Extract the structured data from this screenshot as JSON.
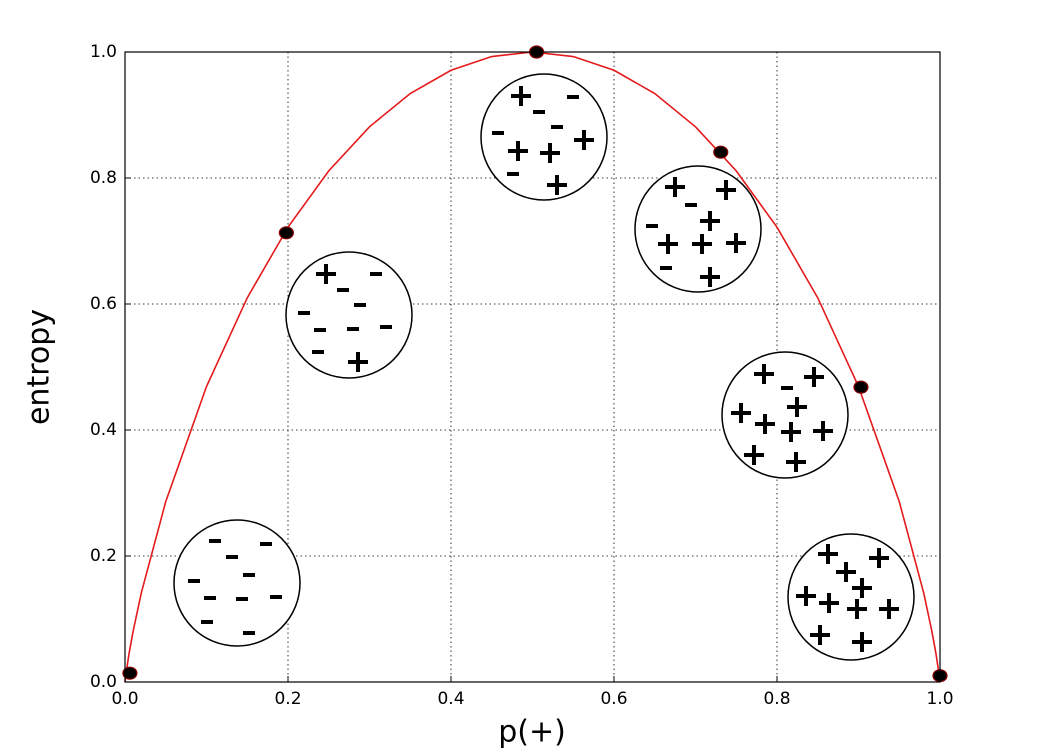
{
  "chart_data": {
    "type": "line",
    "xlabel": "p(+)",
    "ylabel": "entropy",
    "xlim": [
      0,
      1
    ],
    "ylim": [
      0,
      1
    ],
    "xticks": [
      {
        "value": 0,
        "label": "0.0"
      },
      {
        "value": 0.2,
        "label": "0.2"
      },
      {
        "value": 0.4,
        "label": "0.4"
      },
      {
        "value": 0.6,
        "label": "0.6"
      },
      {
        "value": 0.8,
        "label": "0.8"
      },
      {
        "value": 1,
        "label": "1.0"
      }
    ],
    "yticks": [
      {
        "value": 0,
        "label": "0.0"
      },
      {
        "value": 0.2,
        "label": "0.2"
      },
      {
        "value": 0.4,
        "label": "0.4"
      },
      {
        "value": 0.6,
        "label": "0.6"
      },
      {
        "value": 0.8,
        "label": "0.8"
      },
      {
        "value": 1,
        "label": "1.0"
      }
    ],
    "grid": true,
    "series": [
      {
        "color": "#e41a1c",
        "marker": false,
        "x": [
          0,
          0.001,
          0.005,
          0.01,
          0.02,
          0.05,
          0.1,
          0.15,
          0.2,
          0.25,
          0.3,
          0.35,
          0.4,
          0.45,
          0.5,
          0.55,
          0.6,
          0.65,
          0.7,
          0.75,
          0.8,
          0.85,
          0.9,
          0.95,
          0.98,
          0.99,
          0.995,
          0.999,
          1
        ],
        "values": [
          0,
          0.0114,
          0.0454,
          0.0808,
          0.1414,
          0.2864,
          0.469,
          0.6098,
          0.7219,
          0.8113,
          0.8813,
          0.9341,
          0.971,
          0.9928,
          1,
          0.9928,
          0.971,
          0.9341,
          0.8813,
          0.8113,
          0.7219,
          0.6098,
          0.469,
          0.2864,
          0.1414,
          0.0808,
          0.0454,
          0.0114,
          0
        ]
      },
      {
        "color": "#000000",
        "marker": true,
        "x": [
          0.006,
          0.198,
          0.505,
          0.731,
          0.903,
          1.0
        ],
        "values": [
          0.014,
          0.713,
          1.0,
          0.841,
          0.468,
          0.01
        ]
      }
    ]
  }
}
